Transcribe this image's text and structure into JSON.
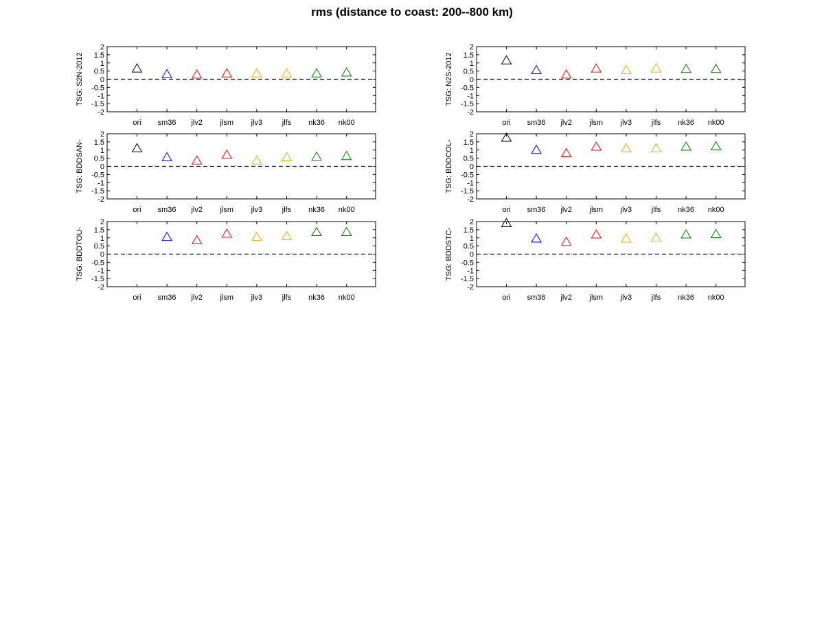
{
  "chart_data": {
    "title": "rms (distance to coast: 200--800 km)",
    "type": "scatter",
    "marker": "triangle",
    "categories": [
      "ori",
      "sm36",
      "jlv2",
      "jlsm",
      "jlv3",
      "jlfs",
      "nk36",
      "nk00"
    ],
    "marker_colors": [
      "#000000",
      "#0000ff",
      "#ff0000",
      "#ff0000",
      "#ffa500",
      "#ffa500",
      "#008000",
      "#008000"
    ],
    "ylim": [
      -2,
      2
    ],
    "yticks": [
      "2",
      "1.5",
      "1",
      "0.5",
      "0",
      "-0.5",
      "-1",
      "-1.5",
      "-2"
    ],
    "reference_line": {
      "y": 0,
      "style": "dashed"
    },
    "panels": [
      {
        "ylabel": "TSG: S2N-2012",
        "values": [
          0.65,
          0.3,
          0.28,
          0.35,
          0.35,
          0.35,
          0.35,
          0.4
        ]
      },
      {
        "ylabel": "TSG: N2S-2012",
        "values": [
          1.15,
          0.55,
          0.28,
          0.65,
          0.55,
          0.65,
          0.62,
          0.62
        ]
      },
      {
        "ylabel": "TSG: BDDSAN-",
        "values": [
          1.1,
          0.55,
          0.35,
          0.7,
          0.35,
          0.55,
          0.58,
          0.62
        ]
      },
      {
        "ylabel": "TSG: BDDCOL-",
        "values": [
          1.75,
          1.0,
          0.8,
          1.2,
          1.1,
          1.1,
          1.2,
          1.22
        ]
      },
      {
        "ylabel": "TSG: BDDTOU-",
        "values": [
          null,
          1.05,
          0.85,
          1.25,
          1.05,
          1.1,
          1.35,
          1.35
        ]
      },
      {
        "ylabel": "TSG: BDDSTC-",
        "values": [
          1.9,
          0.95,
          0.75,
          1.2,
          0.95,
          1.0,
          1.2,
          1.22
        ]
      }
    ]
  }
}
